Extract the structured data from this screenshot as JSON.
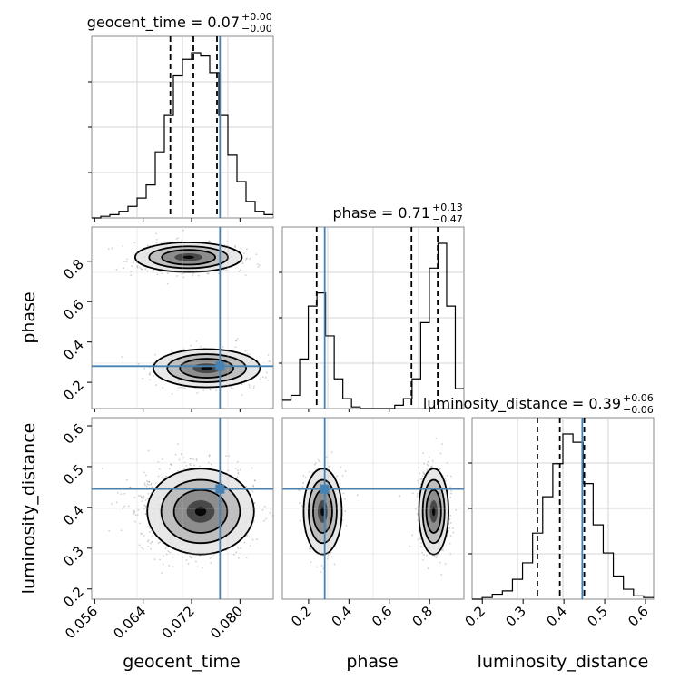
{
  "chart_data": {
    "type": "corner",
    "parameters": [
      "geocent_time",
      "phase",
      "luminosity_distance"
    ],
    "truth": {
      "geocent_time": 0.0767,
      "phase": 0.28,
      "luminosity_distance": 0.445
    },
    "truth_color": "#4682b4",
    "titles": [
      {
        "main": "geocent_time = 0.07",
        "plus": "+0.00",
        "minus": "−0.00"
      },
      {
        "main": "phase = 0.71",
        "plus": "+0.13",
        "minus": "−0.47"
      },
      {
        "main": "luminosity_distance = 0.39",
        "plus": "+0.06",
        "minus": "−0.06"
      }
    ],
    "axis_labels": {
      "x": [
        "geocent_time",
        "phase",
        "luminosity_distance"
      ],
      "y": [
        "phase",
        "luminosity_distance"
      ]
    },
    "ranges": {
      "geocent_time": [
        0.0555,
        0.0855
      ],
      "phase": [
        0.07,
        0.97
      ],
      "luminosity_distance": [
        0.175,
        0.62
      ]
    },
    "ticks": {
      "geocent_time": [
        "0.056",
        "0.064",
        "0.072",
        "0.080"
      ],
      "phase": [
        "0.2",
        "0.4",
        "0.6",
        "0.8"
      ],
      "luminosity_distance": [
        "0.2",
        "0.3",
        "0.4",
        "0.5",
        "0.6"
      ]
    },
    "quantiles": {
      "geocent_time": [
        0.0685,
        0.0723,
        0.0762
      ],
      "phase": [
        0.24,
        0.71,
        0.84
      ],
      "luminosity_distance": [
        0.335,
        0.39,
        0.45
      ]
    },
    "histograms": {
      "geocent_time": {
        "edges_range": [
          0.0555,
          0.0855
        ],
        "counts": [
          0,
          1,
          2,
          4,
          7,
          12,
          20,
          40,
          62,
          86,
          96,
          100,
          98,
          88,
          62,
          38,
          22,
          10,
          4,
          2
        ]
      },
      "phase": {
        "edges_range": [
          0.07,
          0.97
        ],
        "counts": [
          5,
          8,
          30,
          62,
          70,
          44,
          18,
          6,
          1,
          0,
          0,
          0,
          0,
          2,
          6,
          18,
          52,
          85,
          100,
          62,
          12
        ]
      },
      "luminosity_distance": {
        "edges_range": [
          0.175,
          0.62
        ],
        "counts": [
          0,
          1,
          3,
          5,
          12,
          22,
          40,
          62,
          82,
          100,
          95,
          70,
          45,
          28,
          14,
          6,
          2,
          1
        ]
      }
    },
    "modes": [
      {
        "geocent_time": 0.0715,
        "phase": 0.82,
        "luminosity_distance": 0.39,
        "sd_geocent_time": 0.0042,
        "sd_phase": 0.035,
        "sd_luminosity_distance": 0.05,
        "weight": 0.6
      },
      {
        "geocent_time": 0.0745,
        "phase": 0.27,
        "luminosity_distance": 0.39,
        "sd_geocent_time": 0.0042,
        "sd_phase": 0.045,
        "sd_luminosity_distance": 0.05,
        "weight": 0.4
      }
    ],
    "grid": true
  }
}
